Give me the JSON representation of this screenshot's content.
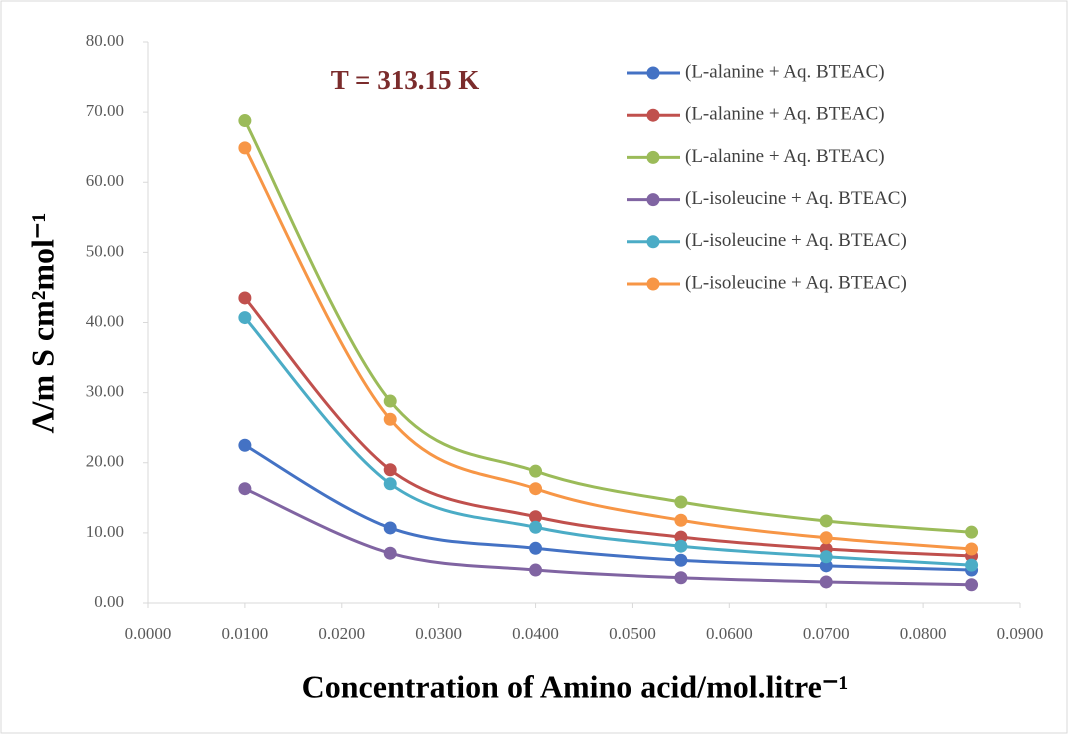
{
  "chart_data": {
    "type": "line",
    "annotation": "T = 313.15 K",
    "x_label": "Concentration of Amino acid/mol.litre⁻¹",
    "y_label": "Λ/m S cm²mol⁻¹",
    "x": [
      0.01,
      0.025,
      0.04,
      0.055,
      0.07,
      0.085
    ],
    "series": [
      {
        "name": "(L-alanine + Aq. BTEAC)",
        "color": "#4472c4",
        "values": [
          22.5,
          10.7,
          7.8,
          6.1,
          5.3,
          4.7
        ]
      },
      {
        "name": "(L-alanine + Aq. BTEAC)",
        "color": "#c0504d",
        "values": [
          43.5,
          19.0,
          12.3,
          9.4,
          7.7,
          6.7
        ]
      },
      {
        "name": "(L-alanine + Aq. BTEAC)",
        "color": "#9bbb59",
        "values": [
          68.8,
          28.8,
          18.8,
          14.4,
          11.7,
          10.1
        ]
      },
      {
        "name": "(L-isoleucine + Aq. BTEAC)",
        "color": "#8064a2",
        "values": [
          16.3,
          7.1,
          4.7,
          3.6,
          3.0,
          2.6
        ]
      },
      {
        "name": "(L-isoleucine + Aq. BTEAC)",
        "color": "#4bacc6",
        "values": [
          40.7,
          17.0,
          10.8,
          8.1,
          6.6,
          5.4
        ]
      },
      {
        "name": "(L-isoleucine + Aq. BTEAC)",
        "color": "#f79646",
        "values": [
          64.9,
          26.2,
          16.3,
          11.8,
          9.3,
          7.7
        ]
      }
    ],
    "xlim": [
      0,
      0.09
    ],
    "xticks": [
      {
        "value": 0,
        "label": "0.0000"
      },
      {
        "value": 0.01,
        "label": "0.0100"
      },
      {
        "value": 0.02,
        "label": "0.0200"
      },
      {
        "value": 0.03,
        "label": "0.0300"
      },
      {
        "value": 0.04,
        "label": "0.0400"
      },
      {
        "value": 0.05,
        "label": "0.0500"
      },
      {
        "value": 0.06,
        "label": "0.0600"
      },
      {
        "value": 0.07,
        "label": "0.0700"
      },
      {
        "value": 0.08,
        "label": "0.0800"
      },
      {
        "value": 0.09,
        "label": "0.0900"
      }
    ],
    "ylim": [
      0,
      80
    ],
    "yticks": [
      {
        "value": 0,
        "label": "0.00"
      },
      {
        "value": 10,
        "label": "10.00"
      },
      {
        "value": 20,
        "label": "20.00"
      },
      {
        "value": 30,
        "label": "30.00"
      },
      {
        "value": 40,
        "label": "40.00"
      },
      {
        "value": 50,
        "label": "50.00"
      },
      {
        "value": 60,
        "label": "60.00"
      },
      {
        "value": 70,
        "label": "70.00"
      },
      {
        "value": 80,
        "label": "80.00"
      }
    ],
    "smooth": true,
    "grid": false
  }
}
